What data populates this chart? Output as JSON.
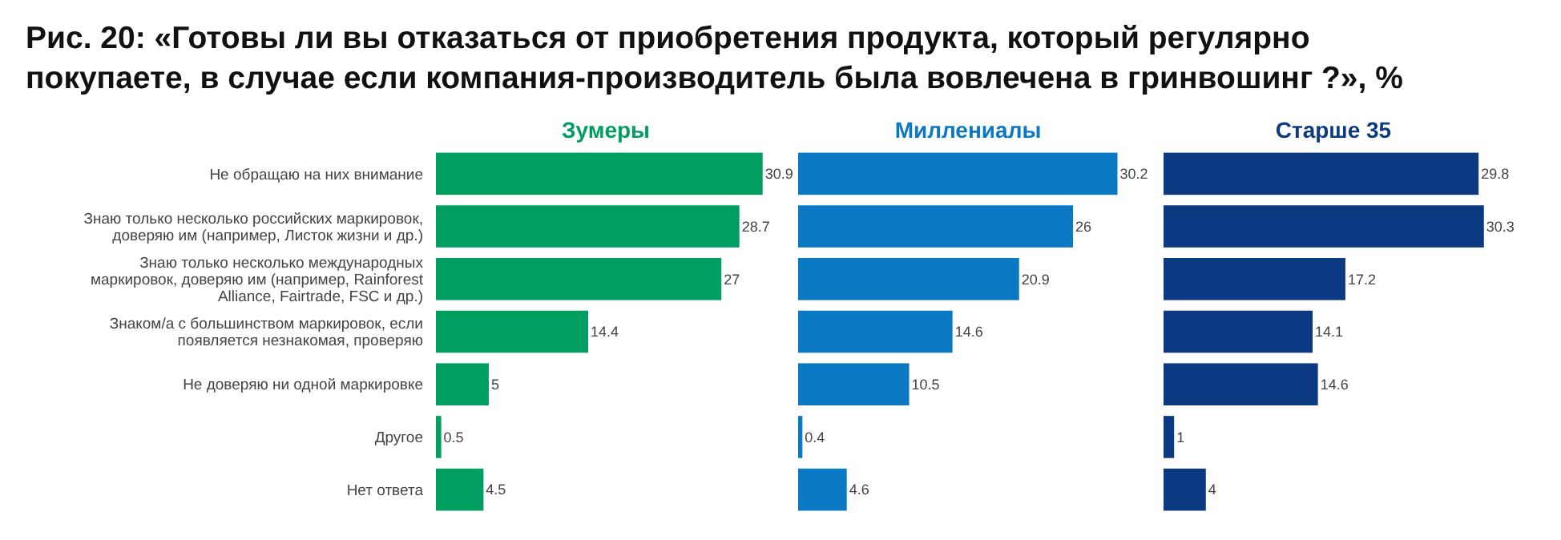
{
  "chart_data": [
    {
      "type": "bar",
      "orientation": "horizontal",
      "title": "Зумеры",
      "categories": [
        "Не обращаю на них внимание",
        "Знаю только несколько российских маркировок, доверяю им (например, Листок жизни и др.)",
        "Знаю только несколько международных маркировок, доверяю им (например, Rainforest Alliance, Fairtrade, FSC и др.)",
        "Знаком/а с большинством маркировок, если появляется незнакомая, проверяю",
        "Не доверяю ни одной маркировке",
        "Другое",
        "Нет ответа"
      ],
      "series": [
        {
          "color": "#009e61",
          "values": [
            30.9,
            28.7,
            27,
            14.4,
            5,
            0.5,
            4.5
          ]
        }
      ],
      "data_labels": true,
      "tick_labels": "y",
      "annotations": [
        "Рис. 20: «Готовы ли вы отказаться от приобретения продукта, который регулярно покупаете, в случае если компания-производитель была вовлечена в гринвошинг ?», %"
      ]
    },
    {
      "type": "bar",
      "orientation": "horizontal",
      "title": "Миллениалы",
      "series": [
        {
          "color": "#0a78c3",
          "values": [
            30.2,
            26,
            20.9,
            14.6,
            10.5,
            0.4,
            4.6
          ]
        }
      ],
      "data_labels": true,
      "tick_labels": false
    },
    {
      "type": "bar",
      "orientation": "horizontal",
      "title": "Старше 35",
      "series": [
        {
          "color": "#0c3a82",
          "values": [
            29.8,
            30.3,
            17.2,
            14.1,
            14.6,
            1,
            4
          ]
        }
      ],
      "data_labels": true,
      "tick_labels": false
    }
  ]
}
